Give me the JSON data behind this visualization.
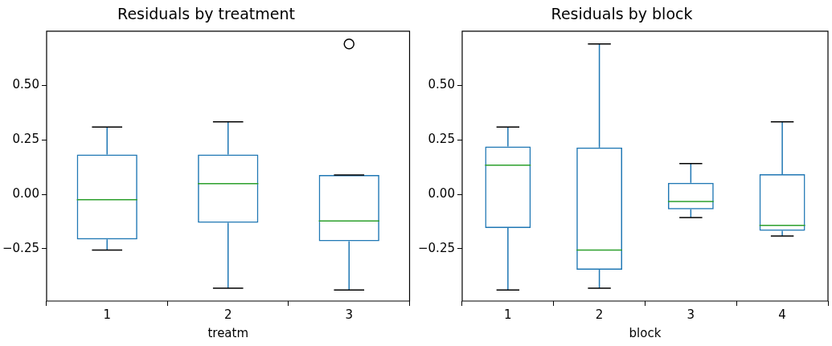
{
  "chart_data": [
    {
      "type": "box",
      "title": "Residuals by treatment",
      "xlabel": "treatm",
      "categories": [
        "1",
        "2",
        "3"
      ],
      "ylim": [
        -0.49,
        0.75
      ],
      "yticks": [
        {
          "value": -0.25,
          "label": "−0.25"
        },
        {
          "value": 0,
          "label": "0.00"
        },
        {
          "value": 0.25,
          "label": "0.25"
        },
        {
          "value": 0.5,
          "label": "0.50"
        }
      ],
      "grid": false,
      "legend": false,
      "series": [
        {
          "color": "#1f77b4",
          "boxes": [
            {
              "low": -0.256,
              "q1": -0.207,
              "median": -0.024,
              "q3": 0.183,
              "high": 0.309
            },
            {
              "low": -0.431,
              "q1": -0.13,
              "median": 0.049,
              "q3": 0.183,
              "high": 0.333
            },
            {
              "low": -0.439,
              "q1": -0.215,
              "median": -0.122,
              "q3": 0.089,
              "high": 0.089,
              "outliers": [
                0.691
              ]
            }
          ]
        }
      ]
    },
    {
      "type": "box",
      "title": "Residuals by block",
      "xlabel": "block",
      "categories": [
        "1",
        "2",
        "3",
        "4"
      ],
      "ylim": [
        -0.49,
        0.75
      ],
      "yticks": [
        {
          "value": -0.25,
          "label": "−0.25"
        },
        {
          "value": 0,
          "label": "0.00"
        },
        {
          "value": 0.25,
          "label": "0.25"
        },
        {
          "value": 0.5,
          "label": "0.50"
        }
      ],
      "grid": false,
      "legend": false,
      "series": [
        {
          "color": "#1f77b4",
          "boxes": [
            {
              "low": -0.439,
              "q1": -0.154,
              "median": 0.134,
              "q3": 0.22,
              "high": 0.309
            },
            {
              "low": -0.431,
              "q1": -0.346,
              "median": -0.256,
              "q3": 0.215,
              "high": 0.691
            },
            {
              "low": -0.106,
              "q1": -0.069,
              "median": -0.033,
              "q3": 0.053,
              "high": 0.142
            },
            {
              "low": -0.191,
              "q1": -0.167,
              "median": -0.142,
              "q3": 0.093,
              "high": 0.333
            }
          ]
        }
      ]
    }
  ]
}
